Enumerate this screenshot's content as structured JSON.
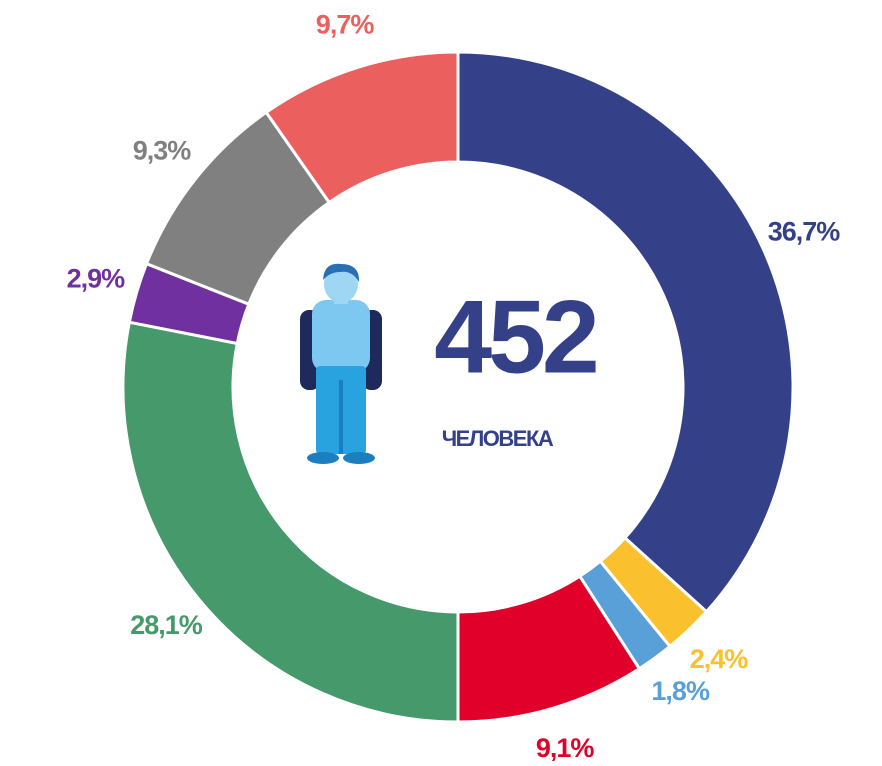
{
  "chart_data": {
    "type": "donut",
    "categories": [
      null,
      null,
      null,
      null,
      null,
      null,
      null,
      null
    ],
    "values": [
      36.7,
      2.4,
      1.8,
      9.1,
      28.1,
      2.9,
      9.3,
      9.7
    ],
    "value_labels": [
      "36,7%",
      "2,4%",
      "1,8%",
      "9,1%",
      "28,1%",
      "2,9%",
      "9,3%",
      "9,7%"
    ],
    "colors": [
      "#344189",
      "#fbc02d",
      "#5aa0d8",
      "#e0002a",
      "#46996a",
      "#7030a0",
      "#808080",
      "#eb5f5f"
    ],
    "center": {
      "value": 452,
      "label": "ЧЕЛОВЕКА"
    }
  }
}
